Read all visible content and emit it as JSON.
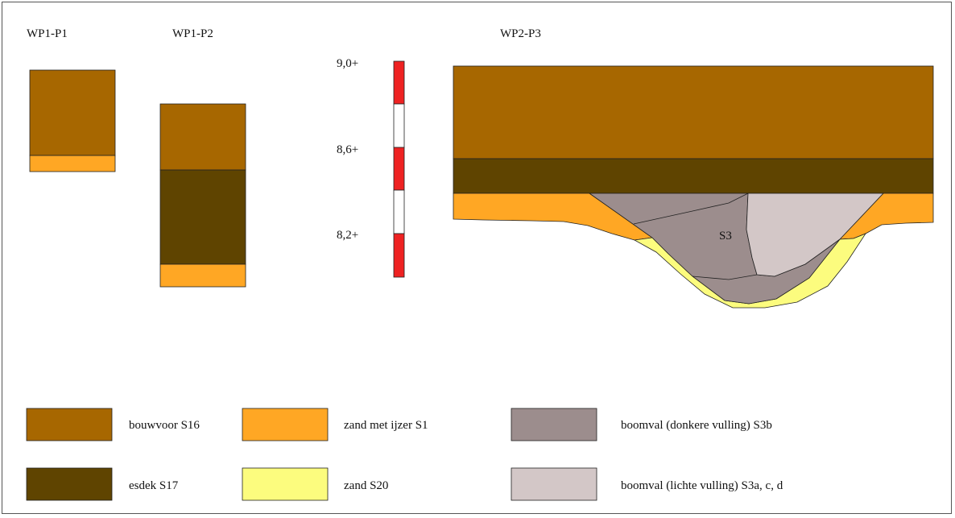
{
  "profiles": {
    "p1_title": "WP1-P1",
    "p2_title": "WP1-P2",
    "p3_title": "WP2-P3"
  },
  "scale": {
    "ticks": [
      "9,0+",
      "8,6+",
      "8,2+"
    ]
  },
  "features": {
    "s3_label": "S3"
  },
  "colors": {
    "bouwvoor": "#a76700",
    "zand_ijzer": "#ffa724",
    "esdek": "#5f4400",
    "zand": "#fcfc7e",
    "donker": "#9c8d8d",
    "licht": "#d3c7c7",
    "scale_red": "#ee2222"
  },
  "legend": {
    "items": [
      {
        "key": "bouwvoor",
        "label": "bouwvoor S16"
      },
      {
        "key": "esdek",
        "label": "esdek S17"
      },
      {
        "key": "zand_ijzer",
        "label": "zand met ijzer S1"
      },
      {
        "key": "zand",
        "label": "zand S20"
      },
      {
        "key": "donker",
        "label": "boomval (donkere vulling) S3b"
      },
      {
        "key": "licht",
        "label": "boomval (lichte vulling) S3a, c, d"
      }
    ]
  }
}
